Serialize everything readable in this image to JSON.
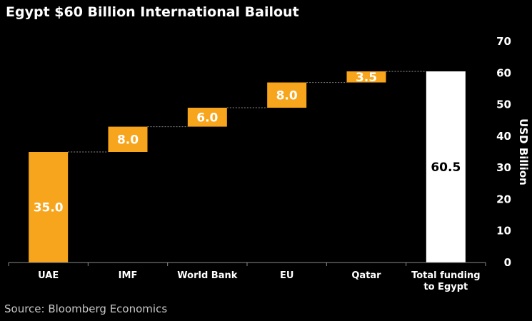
{
  "title": "Egypt $60 Billion International Bailout",
  "source": "Source: Bloomberg Economics",
  "colors": {
    "increase": "#f7a51c",
    "total": "#ffffff",
    "background": "#000000",
    "connector": "#8a8a8a"
  },
  "chart_data": {
    "type": "bar",
    "subtype": "waterfall",
    "categories": [
      "UAE",
      "IMF",
      "World Bank",
      "EU",
      "Qatar",
      "Total funding to Egypt"
    ],
    "category_label_lines": [
      [
        "UAE"
      ],
      [
        "IMF"
      ],
      [
        "World Bank"
      ],
      [
        "EU"
      ],
      [
        "Qatar"
      ],
      [
        "Total funding",
        "to Egypt"
      ]
    ],
    "values": [
      35.0,
      8.0,
      6.0,
      8.0,
      3.5,
      60.5
    ],
    "value_labels": [
      "35.0",
      "8.0",
      "6.0",
      "8.0",
      "3.5",
      "60.5"
    ],
    "is_total": [
      false,
      false,
      false,
      false,
      false,
      true
    ],
    "ylabel": "USD Billion",
    "ylim": [
      0,
      70
    ],
    "yticks": [
      0,
      10,
      20,
      30,
      40,
      50,
      60,
      70
    ],
    "y_axis_side": "right",
    "grid": false,
    "connectors": true
  }
}
